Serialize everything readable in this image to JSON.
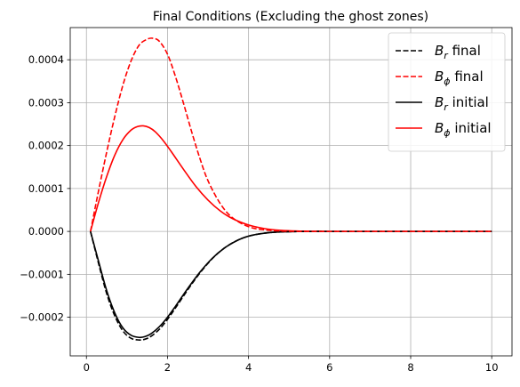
{
  "chart_data": {
    "type": "line",
    "title": "Final Conditions (Excluding the ghost zones)",
    "xlabel": "",
    "ylabel": "",
    "xlim": [
      -0.4,
      10.5
    ],
    "ylim": [
      -0.00029,
      0.000475
    ],
    "x_ticks": [
      0,
      2,
      4,
      6,
      8,
      10
    ],
    "x_tick_labels": [
      "0",
      "2",
      "4",
      "6",
      "8",
      "10"
    ],
    "y_ticks": [
      -0.0002,
      -0.0001,
      0.0,
      0.0001,
      0.0002,
      0.0003,
      0.0004
    ],
    "y_tick_labels": [
      "−0.0002",
      "−0.0001",
      "0.0000",
      "0.0001",
      "0.0002",
      "0.0003",
      "0.0004"
    ],
    "grid": true,
    "legend_position": "top-right",
    "series": [
      {
        "name": "B_r final",
        "legend_base": "B",
        "legend_sub": "r",
        "legend_suffix": " final",
        "color": "#000000",
        "dash": "dashed",
        "x": [
          0.1,
          0.3,
          0.5,
          0.7,
          0.9,
          1.1,
          1.3,
          1.45,
          1.6,
          1.8,
          2.0,
          2.2,
          2.5,
          2.8,
          3.1,
          3.4,
          3.7,
          4.0,
          4.4,
          4.8,
          5.2,
          5.6,
          6.0,
          7.0,
          8.0,
          9.0,
          10.0
        ],
        "y": [
          0.0,
          -7.5e-05,
          -0.000145,
          -0.000197,
          -0.000232,
          -0.000249,
          -0.000253,
          -0.000251,
          -0.000244,
          -0.000228,
          -0.000205,
          -0.000178,
          -0.000136,
          -9.7e-05,
          -6.4e-05,
          -3.9e-05,
          -2.2e-05,
          -1.1e-05,
          -4e-06,
          -1.2e-06,
          -3e-07,
          0.0,
          0.0,
          0.0,
          0.0,
          0.0,
          0.0
        ]
      },
      {
        "name": "B_phi final",
        "legend_base": "B",
        "legend_sub": "ϕ",
        "legend_suffix": " final",
        "color": "#ff0000",
        "dash": "dashed",
        "x": [
          0.1,
          0.3,
          0.5,
          0.7,
          0.9,
          1.1,
          1.3,
          1.5,
          1.65,
          1.8,
          2.0,
          2.2,
          2.4,
          2.6,
          2.8,
          3.0,
          3.3,
          3.6,
          4.0,
          4.4,
          4.8,
          5.2,
          5.6,
          6.0,
          7.0,
          8.0,
          9.0,
          10.0
        ],
        "y": [
          0.0,
          9.5e-05,
          0.000185,
          0.000268,
          0.000341,
          0.000397,
          0.000434,
          0.000448,
          0.00045,
          0.000443,
          0.000413,
          0.00036,
          0.000297,
          0.000231,
          0.00017,
          0.000118,
          6.5e-05,
          3.2e-05,
          1.1e-05,
          3.5e-06,
          1e-06,
          2e-07,
          0.0,
          0.0,
          0.0,
          0.0,
          0.0,
          0.0
        ]
      },
      {
        "name": "B_r initial",
        "legend_base": "B",
        "legend_sub": "r",
        "legend_suffix": " initial",
        "color": "#000000",
        "dash": "solid",
        "x": [
          0.1,
          0.3,
          0.5,
          0.7,
          0.9,
          1.1,
          1.3,
          1.45,
          1.6,
          1.8,
          2.0,
          2.2,
          2.5,
          2.8,
          3.1,
          3.4,
          3.7,
          4.0,
          4.4,
          4.8,
          5.2,
          5.6,
          6.0,
          7.0,
          8.0,
          9.0,
          10.0
        ],
        "y": [
          0.0,
          -7e-05,
          -0.000138,
          -0.00019,
          -0.000225,
          -0.000242,
          -0.000247,
          -0.000245,
          -0.000238,
          -0.000222,
          -0.0002,
          -0.000174,
          -0.000133,
          -9.5e-05,
          -6.3e-05,
          -3.9e-05,
          -2.2e-05,
          -1.1e-05,
          -4e-06,
          -1.2e-06,
          -3e-07,
          0.0,
          0.0,
          0.0,
          0.0,
          0.0,
          0.0
        ]
      },
      {
        "name": "B_phi initial",
        "legend_base": "B",
        "legend_sub": "ϕ",
        "legend_suffix": " initial",
        "color": "#ff0000",
        "dash": "solid",
        "x": [
          0.1,
          0.3,
          0.5,
          0.7,
          0.9,
          1.1,
          1.25,
          1.4,
          1.55,
          1.7,
          1.9,
          2.1,
          2.4,
          2.7,
          3.0,
          3.3,
          3.6,
          4.0,
          4.4,
          4.8,
          5.2,
          5.6,
          6.0,
          7.0,
          8.0,
          9.0,
          10.0
        ],
        "y": [
          0.0,
          6.8e-05,
          0.000128,
          0.000178,
          0.000214,
          0.000236,
          0.000244,
          0.000246,
          0.000242,
          0.000232,
          0.000211,
          0.000185,
          0.000144,
          0.000105,
          7.3e-05,
          4.8e-05,
          3e-05,
          1.5e-05,
          6.5e-06,
          2.5e-06,
          8e-07,
          2e-07,
          0.0,
          0.0,
          0.0,
          0.0,
          0.0
        ]
      }
    ]
  }
}
